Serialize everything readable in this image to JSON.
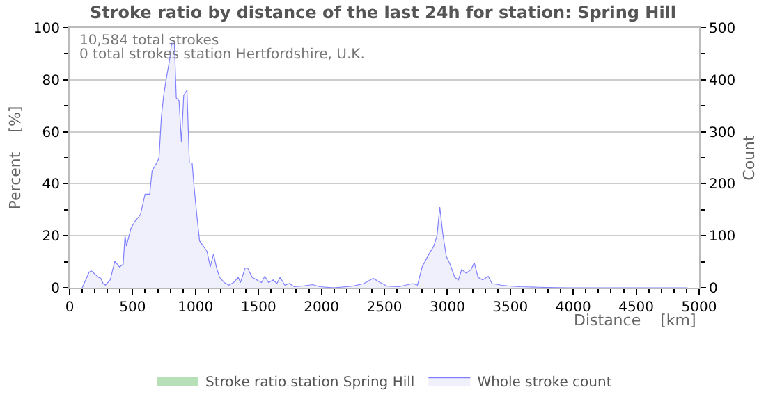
{
  "chart_data": {
    "type": "area",
    "title": "Stroke ratio by distance of the last 24h for station: Spring Hill",
    "xlabel": "Distance    [km]",
    "ylabel": "Percent    [%]",
    "y2label": "Count",
    "x": [
      100,
      155,
      174,
      229,
      248,
      266,
      285,
      322,
      359,
      396,
      425,
      440,
      451,
      488,
      525,
      562,
      599,
      636,
      655,
      692,
      710,
      729,
      747,
      766,
      795,
      810,
      832,
      847,
      869,
      888,
      906,
      932,
      951,
      973,
      988,
      1010,
      1032,
      1062,
      1091,
      1117,
      1143,
      1165,
      1191,
      1228,
      1265,
      1302,
      1339,
      1357,
      1394,
      1413,
      1450,
      1487,
      1524,
      1550,
      1580,
      1617,
      1646,
      1672,
      1709,
      1746,
      1783,
      1839,
      1931,
      1987,
      2098,
      2246,
      2337,
      2411,
      2467,
      2522,
      2614,
      2725,
      2763,
      2800,
      2855,
      2892,
      2918,
      2940,
      2966,
      2992,
      3022,
      3059,
      3088,
      3114,
      3151,
      3188,
      3214,
      3244,
      3281,
      3325,
      3355,
      3429,
      3503,
      3577,
      3725,
      3947,
      4316,
      4686,
      4908
    ],
    "series": [
      {
        "name": "Stroke ratio station Spring Hill",
        "color": "#b8e0b8",
        "values": [
          null,
          null,
          null,
          null,
          null,
          null,
          null,
          null,
          null,
          null,
          null,
          null,
          null,
          null,
          null,
          null,
          null,
          null,
          null,
          null,
          null,
          null,
          null,
          null,
          null,
          null,
          null,
          null,
          null,
          null,
          null,
          null,
          null,
          null,
          null,
          null,
          null,
          null,
          null,
          null,
          null,
          null,
          null,
          null,
          null,
          null,
          null,
          null,
          null,
          null,
          null,
          null,
          null,
          null,
          null,
          null,
          null,
          null,
          null,
          null,
          null,
          null,
          null,
          null,
          null,
          null,
          null,
          null,
          null,
          null,
          null,
          null,
          null,
          null,
          null,
          null,
          null,
          null,
          null,
          null,
          null,
          null,
          null,
          null,
          null,
          null,
          null,
          null,
          null,
          null,
          null,
          null,
          null,
          null,
          null,
          null,
          null,
          null,
          null
        ]
      },
      {
        "name": "Whole stroke count",
        "color": "#8080ff",
        "axis": "y2",
        "values": [
          0,
          30,
          32,
          20,
          18,
          8,
          5,
          15,
          51,
          40,
          45,
          100,
          80,
          115,
          130,
          140,
          180,
          180,
          225,
          240,
          250,
          330,
          370,
          400,
          440,
          470,
          470,
          365,
          360,
          280,
          370,
          380,
          240,
          240,
          195,
          140,
          90,
          80,
          70,
          40,
          65,
          40,
          20,
          10,
          5,
          10,
          20,
          10,
          38,
          38,
          20,
          15,
          10,
          22,
          10,
          15,
          8,
          20,
          5,
          8,
          2,
          3,
          6,
          2,
          0,
          3,
          8,
          18,
          10,
          3,
          2,
          8,
          5,
          40,
          65,
          80,
          100,
          155,
          100,
          60,
          45,
          20,
          15,
          35,
          28,
          35,
          48,
          20,
          15,
          22,
          8,
          5,
          3,
          2,
          1,
          0,
          0,
          0,
          0
        ]
      }
    ],
    "xlim": [
      0,
      5000
    ],
    "xticks": [
      0,
      500,
      1000,
      1500,
      2000,
      2500,
      3000,
      3500,
      4000,
      4500,
      5000
    ],
    "ylim": [
      0,
      100
    ],
    "yticks": [
      0,
      20,
      40,
      60,
      80,
      100
    ],
    "y2lim": [
      0,
      500
    ],
    "y2ticks": [
      0,
      100,
      200,
      300,
      400,
      500
    ],
    "annotations": [
      "10,584 total strokes",
      "0 total strokes station Hertfordshire, U.K."
    ],
    "grid": "y",
    "legend": "bottom"
  }
}
